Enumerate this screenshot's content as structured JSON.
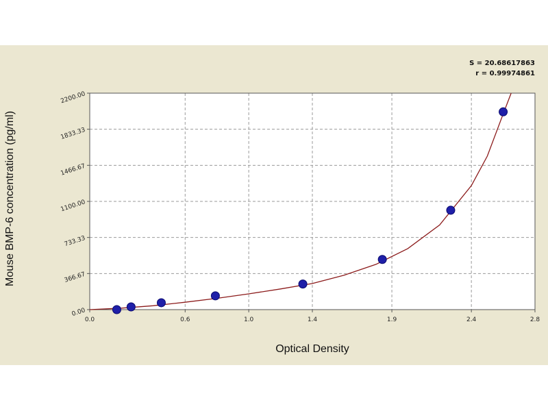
{
  "chart_data": {
    "type": "scatter",
    "title": "",
    "xlabel": "Optical Density",
    "ylabel": "Mouse BMP-6 concentration (pg/ml)",
    "xlim": [
      0.0,
      2.8
    ],
    "ylim": [
      0.0,
      2200.0
    ],
    "x_tick_values": [
      0.0,
      0.6,
      1.0,
      1.4,
      1.9,
      2.4,
      2.8
    ],
    "x_tick_labels": [
      "0.0",
      "0.6",
      "1.0",
      "1.4",
      "1.9",
      "2.4",
      "2.8"
    ],
    "y_tick_values": [
      0.0,
      366.67,
      733.33,
      1100.0,
      1466.67,
      1833.33,
      2200.0
    ],
    "y_tick_labels": [
      "0.00",
      "366.67",
      "733.33",
      "1100.00",
      "1466.67",
      "1833.33",
      "2200.00"
    ],
    "grid": true,
    "points": [
      {
        "x": 0.17,
        "y": 0
      },
      {
        "x": 0.26,
        "y": 28
      },
      {
        "x": 0.45,
        "y": 70
      },
      {
        "x": 0.79,
        "y": 140
      },
      {
        "x": 1.34,
        "y": 260
      },
      {
        "x": 1.84,
        "y": 510
      },
      {
        "x": 2.27,
        "y": 1010
      },
      {
        "x": 2.6,
        "y": 2010
      }
    ],
    "fit_curve": {
      "x": [
        0.0,
        0.2,
        0.4,
        0.6,
        0.8,
        1.0,
        1.2,
        1.4,
        1.6,
        1.8,
        2.0,
        2.2,
        2.4,
        2.5,
        2.6,
        2.65
      ],
      "y": [
        0,
        15,
        40,
        75,
        115,
        160,
        210,
        265,
        350,
        460,
        620,
        860,
        1260,
        1560,
        1990,
        2200
      ]
    },
    "stats": [
      "S = 20.68617863",
      "r = 0.99974861"
    ],
    "colors": {
      "point_fill": "#1f1fa8",
      "point_stroke": "#0a0a6e",
      "curve": "#8b1a1a",
      "grid": "#9a9a9a",
      "plot_bg": "#ffffff",
      "frame_bg": "#ebe7d1"
    }
  }
}
